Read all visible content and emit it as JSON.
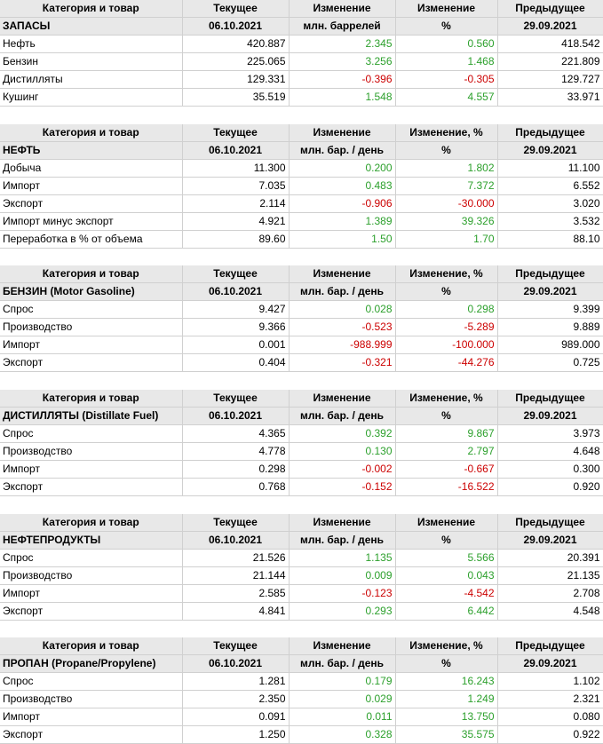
{
  "tables": [
    {
      "header": {
        "row1": [
          "Категория и товар",
          "Текущее",
          "Изменение",
          "Изменение",
          "Предыдущее"
        ],
        "row2": [
          "ЗАПАСЫ",
          "06.10.2021",
          "млн. баррелей",
          "%",
          "29.09.2021"
        ]
      },
      "rows": [
        {
          "name": "Нефть",
          "current": "420.887",
          "change": "2.345",
          "pct": "0.560",
          "prev": "418.542"
        },
        {
          "name": "Бензин",
          "current": "225.065",
          "change": "3.256",
          "pct": "1.468",
          "prev": "221.809"
        },
        {
          "name": "Дистилляты",
          "current": "129.331",
          "change": "-0.396",
          "pct": "-0.305",
          "prev": "129.727"
        },
        {
          "name": "Кушинг",
          "current": "35.519",
          "change": "1.548",
          "pct": "4.557",
          "prev": "33.971"
        }
      ]
    },
    {
      "header": {
        "row1": [
          "Категория и товар",
          "Текущее",
          "Изменение",
          "Изменение, %",
          "Предыдущее"
        ],
        "row2": [
          "НЕФТЬ",
          "06.10.2021",
          "млн. бар. / день",
          "%",
          "29.09.2021"
        ]
      },
      "rows": [
        {
          "name": "Добыча",
          "current": "11.300",
          "change": "0.200",
          "pct": "1.802",
          "prev": "11.100"
        },
        {
          "name": "Импорт",
          "current": "7.035",
          "change": "0.483",
          "pct": "7.372",
          "prev": "6.552"
        },
        {
          "name": "Экспорт",
          "current": "2.114",
          "change": "-0.906",
          "pct": "-30.000",
          "prev": "3.020"
        },
        {
          "name": "Импорт минус экспорт",
          "current": "4.921",
          "change": "1.389",
          "pct": "39.326",
          "prev": "3.532"
        },
        {
          "name": "Переработка в % от объема",
          "current": "89.60",
          "change": "1.50",
          "pct": "1.70",
          "prev": "88.10"
        }
      ]
    },
    {
      "header": {
        "row1": [
          "Категория и товар",
          "Текущее",
          "Изменение",
          "Изменение, %",
          "Предыдущее"
        ],
        "row2": [
          "БЕНЗИН (Motor Gasoline)",
          "06.10.2021",
          "млн. бар. / день",
          "%",
          "29.09.2021"
        ]
      },
      "rows": [
        {
          "name": "Спрос",
          "current": "9.427",
          "change": "0.028",
          "pct": "0.298",
          "prev": "9.399"
        },
        {
          "name": "Производство",
          "current": "9.366",
          "change": "-0.523",
          "pct": "-5.289",
          "prev": "9.889"
        },
        {
          "name": "Импорт",
          "current": "0.001",
          "change": "-988.999",
          "pct": "-100.000",
          "prev": "989.000"
        },
        {
          "name": "Экспорт",
          "current": "0.404",
          "change": "-0.321",
          "pct": "-44.276",
          "prev": "0.725"
        }
      ]
    },
    {
      "header": {
        "row1": [
          "Категория и товар",
          "Текущее",
          "Изменение",
          "Изменение, %",
          "Предыдущее"
        ],
        "row2": [
          "ДИСТИЛЛЯТЫ (Distillate Fuel)",
          "06.10.2021",
          "млн. бар. / день",
          "%",
          "29.09.2021"
        ]
      },
      "rows": [
        {
          "name": "Спрос",
          "current": "4.365",
          "change": "0.392",
          "pct": "9.867",
          "prev": "3.973"
        },
        {
          "name": "Производство",
          "current": "4.778",
          "change": "0.130",
          "pct": "2.797",
          "prev": "4.648"
        },
        {
          "name": "Импорт",
          "current": "0.298",
          "change": "-0.002",
          "pct": "-0.667",
          "prev": "0.300"
        },
        {
          "name": "Экспорт",
          "current": "0.768",
          "change": "-0.152",
          "pct": "-16.522",
          "prev": "0.920"
        }
      ]
    },
    {
      "header": {
        "row1": [
          "Категория и товар",
          "Текущее",
          "Изменение",
          "Изменение",
          "Предыдущее"
        ],
        "row2": [
          "НЕФТЕПРОДУКТЫ",
          "06.10.2021",
          "млн. бар. / день",
          "%",
          "29.09.2021"
        ]
      },
      "rows": [
        {
          "name": "Спрос",
          "current": "21.526",
          "change": "1.135",
          "pct": "5.566",
          "prev": "20.391"
        },
        {
          "name": "Производство",
          "current": "21.144",
          "change": "0.009",
          "pct": "0.043",
          "prev": "21.135"
        },
        {
          "name": "Импорт",
          "current": "2.585",
          "change": "-0.123",
          "pct": "-4.542",
          "prev": "2.708"
        },
        {
          "name": "Экспорт",
          "current": "4.841",
          "change": "0.293",
          "pct": "6.442",
          "prev": "4.548"
        }
      ]
    },
    {
      "header": {
        "row1": [
          "Категория и товар",
          "Текущее",
          "Изменение",
          "Изменение, %",
          "Предыдущее"
        ],
        "row2": [
          "ПРОПАН (Propane/Propylene)",
          "06.10.2021",
          "млн. бар. / день",
          "%",
          "29.09.2021"
        ]
      },
      "rows": [
        {
          "name": "Спрос",
          "current": "1.281",
          "change": "0.179",
          "pct": "16.243",
          "prev": "1.102"
        },
        {
          "name": "Производство",
          "current": "2.350",
          "change": "0.029",
          "pct": "1.249",
          "prev": "2.321"
        },
        {
          "name": "Импорт",
          "current": "0.091",
          "change": "0.011",
          "pct": "13.750",
          "prev": "0.080"
        },
        {
          "name": "Экспорт",
          "current": "1.250",
          "change": "0.328",
          "pct": "35.575",
          "prev": "0.922"
        }
      ]
    }
  ],
  "colors": {
    "positive": "#2ca02c",
    "negative": "#cc0000",
    "header_bg": "#e8e8e8",
    "grid": "#d0d0d0"
  }
}
